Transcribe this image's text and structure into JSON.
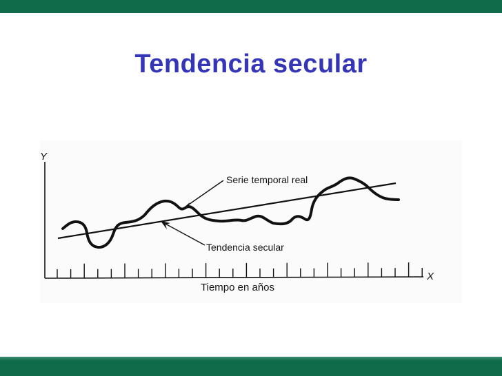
{
  "slide": {
    "title": "Tendencia secular"
  },
  "figure": {
    "y_axis_label": "Y",
    "x_axis_label": "X",
    "x_caption": "Tiempo en años",
    "series_label": "Serie temporal real",
    "trend_label": "Tendencia secular"
  },
  "theme": {
    "bar_color": "#0f6b4a",
    "title_color": "#3535b8",
    "line_color": "#111111"
  }
}
